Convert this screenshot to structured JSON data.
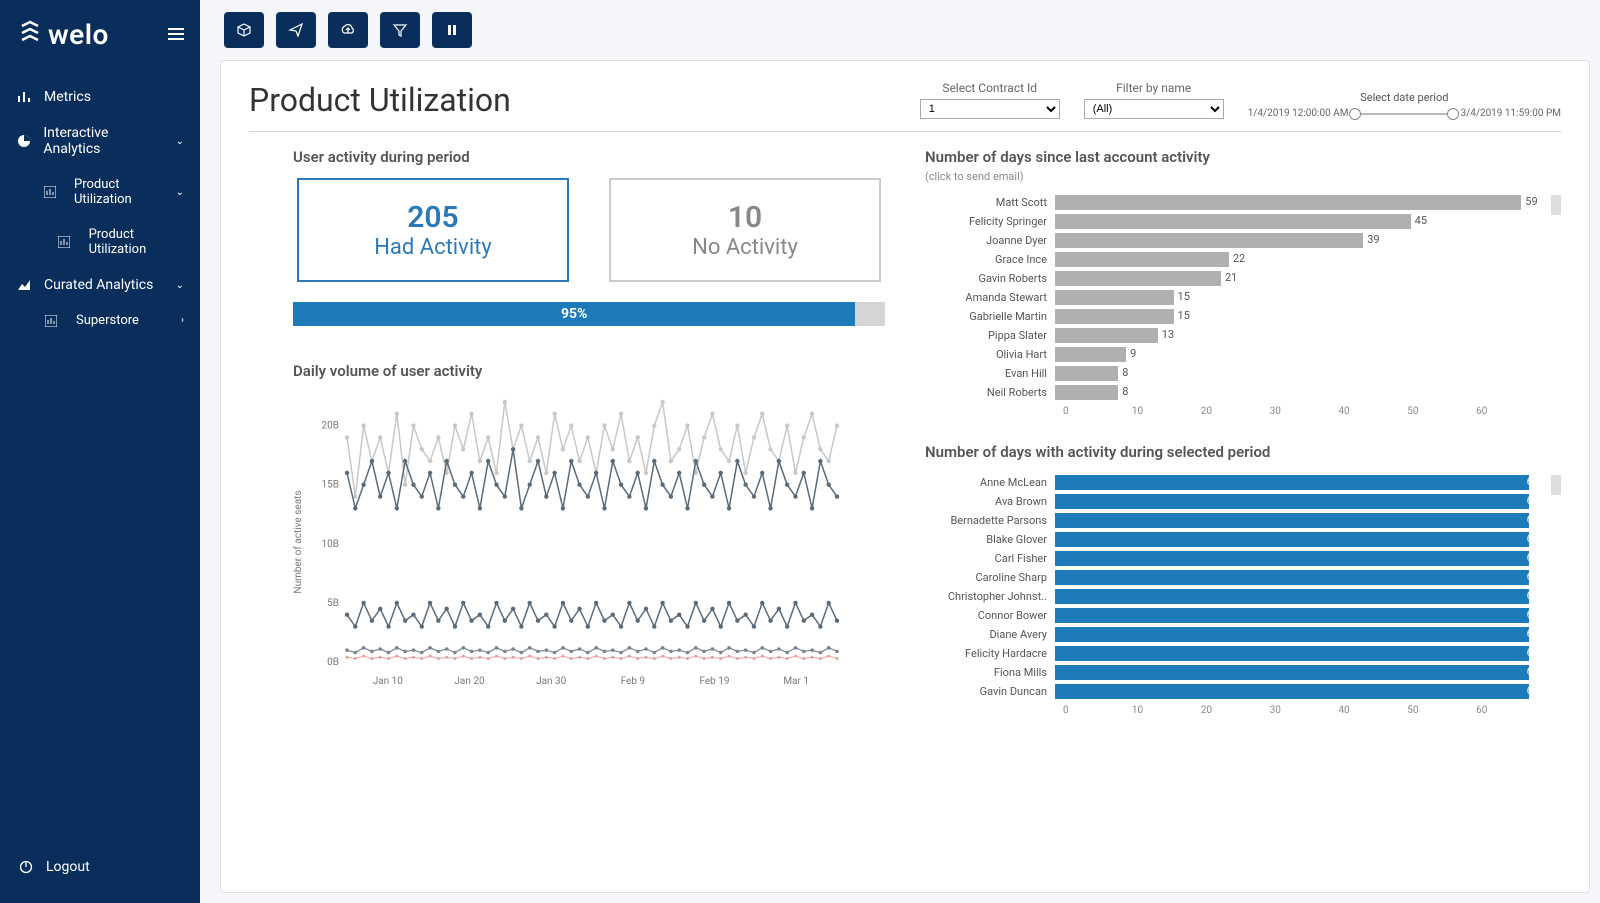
{
  "brand": {
    "name": "welo"
  },
  "sidebar": {
    "items": [
      {
        "label": "Metrics"
      },
      {
        "label": "Interactive Analytics"
      },
      {
        "label": "Product Utilization"
      },
      {
        "label": "Product Utilization"
      },
      {
        "label": "Curated Analytics"
      },
      {
        "label": "Superstore"
      }
    ],
    "logout": "Logout"
  },
  "page": {
    "title": "Product Utilization",
    "filters": {
      "contract_label": "Select Contract Id",
      "contract_value": "1",
      "name_label": "Filter by name",
      "name_value": "(All)",
      "period_label": "Select date period",
      "period_start": "1/4/2019 12:00:00 AM",
      "period_end": "3/4/2019 11:59:00 PM"
    }
  },
  "activity": {
    "title": "User activity during period",
    "active_val": "205",
    "active_lbl": "Had Activity",
    "inactive_val": "10",
    "inactive_lbl": "No Activity",
    "pct": 95,
    "pct_text": "95%"
  },
  "daily": {
    "title": "Daily volume of user activity",
    "ylabel": "Number of active seats",
    "yticks": [
      "0B",
      "5B",
      "10B",
      "15B",
      "20B"
    ],
    "xticks": [
      "Jan 10",
      "Jan 20",
      "Jan 30",
      "Feb 9",
      "Feb 19",
      "Mar 1"
    ],
    "ylim": [
      0,
      22
    ],
    "series": [
      {
        "color": "#c8c8c8",
        "width": 1.5,
        "marker": 2.2,
        "values": [
          19,
          14,
          20,
          17,
          19,
          16,
          21,
          15,
          20,
          18,
          17,
          19,
          16,
          20,
          18,
          21,
          17,
          19,
          16,
          22,
          18,
          20,
          17,
          19,
          16,
          21,
          18,
          20,
          17,
          19,
          16,
          20,
          18,
          21,
          17,
          19,
          16,
          20,
          22,
          17,
          18,
          20,
          16,
          19,
          21,
          18,
          17,
          20,
          16,
          19,
          21,
          18,
          17,
          20,
          16,
          19,
          21,
          18,
          17,
          20
        ]
      },
      {
        "color": "#5a6b7a",
        "width": 1.5,
        "marker": 2.2,
        "values": [
          16,
          13,
          15,
          17,
          14,
          16,
          13,
          17,
          15,
          14,
          16,
          13,
          17,
          15,
          14,
          16,
          13,
          17,
          15,
          14,
          18,
          13,
          15,
          17,
          14,
          16,
          13,
          17,
          15,
          14,
          16,
          13,
          17,
          15,
          14,
          16,
          13,
          17,
          15,
          14,
          16,
          13,
          17,
          15,
          14,
          16,
          13,
          17,
          15,
          14,
          16,
          13,
          17,
          15,
          14,
          16,
          13,
          17,
          15,
          14
        ]
      },
      {
        "color": "#5a6b7a",
        "width": 1.5,
        "marker": 2.2,
        "values": [
          4,
          3,
          5,
          3.5,
          4.5,
          3,
          5,
          3.5,
          4,
          3,
          5,
          3.5,
          4.5,
          3,
          5,
          3.5,
          4,
          3,
          5,
          3.5,
          4.5,
          3,
          5,
          3.5,
          4,
          3,
          5,
          3.5,
          4.5,
          3,
          5,
          3.5,
          4,
          3,
          5,
          3.5,
          4.5,
          3,
          5,
          3.5,
          4,
          3,
          5,
          3.5,
          4.5,
          3,
          5,
          3.5,
          4,
          3,
          5,
          3.5,
          4.5,
          3,
          5,
          3.5,
          4,
          3,
          5,
          3.5
        ]
      },
      {
        "color": "#7a8590",
        "width": 1.2,
        "marker": 1.8,
        "values": [
          1,
          0.8,
          1.2,
          0.9,
          1.1,
          0.8,
          1.2,
          0.9,
          1,
          0.8,
          1.2,
          0.9,
          1.1,
          0.8,
          1.2,
          0.9,
          1,
          0.8,
          1.2,
          0.9,
          1.1,
          0.8,
          1.2,
          0.9,
          1,
          0.8,
          1.2,
          0.9,
          1.1,
          0.8,
          1.2,
          0.9,
          1,
          0.8,
          1.2,
          0.9,
          1.1,
          0.8,
          1.2,
          0.9,
          1,
          0.8,
          1.2,
          0.9,
          1.1,
          0.8,
          1.2,
          0.9,
          1,
          0.8,
          1.2,
          0.9,
          1.1,
          0.8,
          1.2,
          0.9,
          1,
          0.8,
          1.2,
          0.9
        ]
      },
      {
        "color": "#e8a09a",
        "width": 1,
        "marker": 1.5,
        "values": [
          0.4,
          0.3,
          0.5,
          0.3,
          0.4,
          0.3,
          0.5,
          0.3,
          0.4,
          0.3,
          0.5,
          0.3,
          0.4,
          0.3,
          0.5,
          0.3,
          0.4,
          0.3,
          0.5,
          0.3,
          0.4,
          0.3,
          0.5,
          0.3,
          0.4,
          0.3,
          0.5,
          0.3,
          0.4,
          0.3,
          0.5,
          0.3,
          0.4,
          0.3,
          0.5,
          0.3,
          0.4,
          0.3,
          0.5,
          0.3,
          0.4,
          0.3,
          0.5,
          0.3,
          0.4,
          0.3,
          0.5,
          0.3,
          0.4,
          0.3,
          0.5,
          0.3,
          0.4,
          0.3,
          0.5,
          0.3,
          0.4,
          0.3,
          0.5,
          0.3
        ]
      }
    ]
  },
  "since_last": {
    "title": "Number of days since last account activity",
    "subtitle": "(click to send email)",
    "bar_color": "#b0b0b0",
    "max": 62,
    "axis": [
      "0",
      "10",
      "20",
      "30",
      "40",
      "50",
      "60"
    ],
    "rows": [
      {
        "label": "Matt Scott",
        "val": 59
      },
      {
        "label": "Felicity Springer",
        "val": 45
      },
      {
        "label": "Joanne Dyer",
        "val": 39
      },
      {
        "label": "Grace Ince",
        "val": 22
      },
      {
        "label": "Gavin Roberts",
        "val": 21
      },
      {
        "label": "Amanda Stewart",
        "val": 15
      },
      {
        "label": "Gabrielle Martin",
        "val": 15
      },
      {
        "label": "Pippa Slater",
        "val": 13
      },
      {
        "label": "Olivia Hart",
        "val": 9
      },
      {
        "label": "Evan Hill",
        "val": 8
      },
      {
        "label": "Neil Roberts",
        "val": 8
      }
    ]
  },
  "with_activity": {
    "title": "Number of days with activity during selected period",
    "bar_color": "#1c7bb8",
    "max": 62,
    "axis": [
      "0",
      "10",
      "20",
      "30",
      "40",
      "50",
      "60"
    ],
    "rows": [
      {
        "label": "Anne McLean",
        "val": 60
      },
      {
        "label": "Ava Brown",
        "val": 60
      },
      {
        "label": "Bernadette Parsons",
        "val": 60
      },
      {
        "label": "Blake Glover",
        "val": 60
      },
      {
        "label": "Carl Fisher",
        "val": 60
      },
      {
        "label": "Caroline Sharp",
        "val": 60
      },
      {
        "label": "Christopher Johnst..",
        "val": 60
      },
      {
        "label": "Connor Bower",
        "val": 60
      },
      {
        "label": "Diane Avery",
        "val": 60
      },
      {
        "label": "Felicity Hardacre",
        "val": 60
      },
      {
        "label": "Fiona Mills",
        "val": 60
      },
      {
        "label": "Gavin Duncan",
        "val": 60
      }
    ]
  }
}
